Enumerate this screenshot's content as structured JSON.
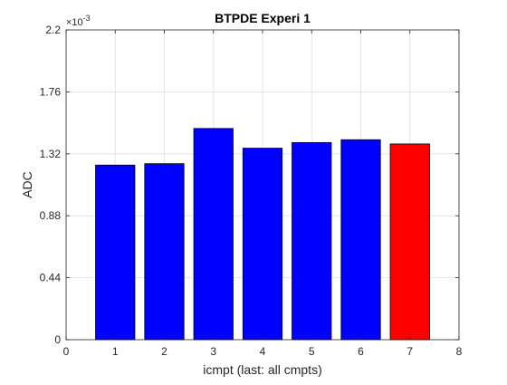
{
  "chart_data": {
    "type": "bar",
    "title": "BTPDE Experi 1",
    "xlabel": "icmpt (last: all cmpts)",
    "ylabel": "ADC",
    "exponent_base": "×10",
    "exponent_power": "-3",
    "x": [
      1,
      2,
      3,
      4,
      5,
      6,
      7
    ],
    "values": [
      0.00124,
      0.00125,
      0.0015,
      0.00136,
      0.0014,
      0.00142,
      0.00139
    ],
    "bar_colors": [
      "#0000ff",
      "#0000ff",
      "#0000ff",
      "#0000ff",
      "#0000ff",
      "#0000ff",
      "#ff0000"
    ],
    "xlim": [
      0,
      8
    ],
    "ylim": [
      0,
      0.0022
    ],
    "xticks": [
      0,
      1,
      2,
      3,
      4,
      5,
      6,
      7,
      8
    ],
    "xtick_labels": [
      "0",
      "1",
      "2",
      "3",
      "4",
      "5",
      "6",
      "7",
      "8"
    ],
    "yticks": [
      0,
      0.00044,
      0.00088,
      0.00132,
      0.00176,
      0.0022
    ],
    "ytick_labels": [
      "0",
      "0.44",
      "0.88",
      "1.32",
      "1.76",
      "2.2"
    ],
    "grid": true
  }
}
